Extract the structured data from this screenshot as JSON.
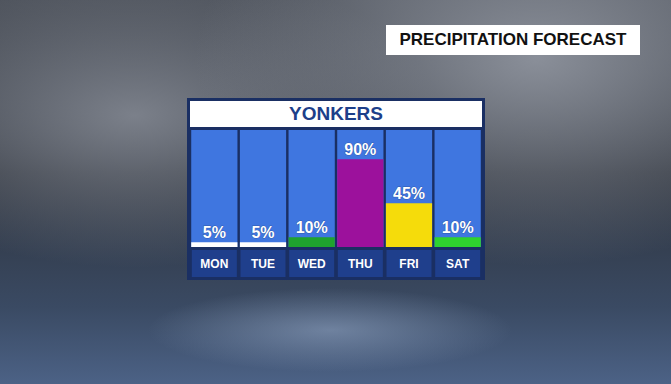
{
  "chart_data": {
    "type": "bar",
    "title": "PRECIPITATION FORECAST",
    "subtitle": "YONKERS",
    "categories": [
      "MON",
      "TUE",
      "WED",
      "THU",
      "FRI",
      "SAT"
    ],
    "values": [
      5,
      5,
      10,
      90,
      45,
      10
    ],
    "value_labels": [
      "5%",
      "5%",
      "10%",
      "90%",
      "45%",
      "10%"
    ],
    "colors": [
      "#ffffff",
      "#ffffff",
      "#1fa22e",
      "#9c119c",
      "#f5dc0b",
      "#2fd12f"
    ],
    "ylim": [
      0,
      120
    ],
    "grid": false,
    "tick_labels": "x",
    "data_labels": true
  }
}
